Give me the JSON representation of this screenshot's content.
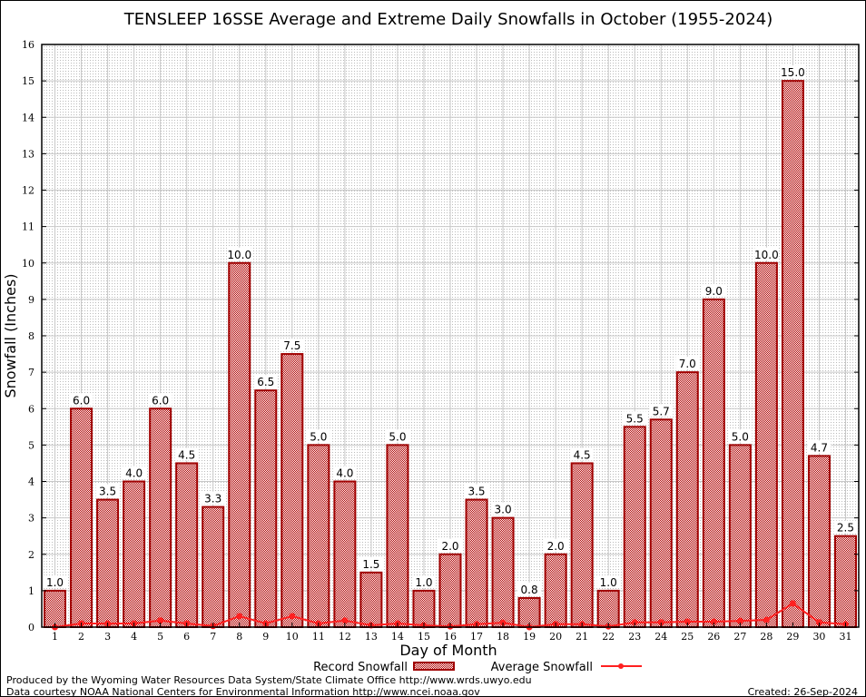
{
  "chart_data": {
    "type": "bar",
    "title": "TENSLEEP 16SSE Average and Extreme Daily Snowfalls in October (1955-2024)",
    "xlabel": "Day of Month",
    "ylabel": "Snowfall (Inches)",
    "ylim": [
      0,
      16
    ],
    "yticks": [
      0,
      1,
      2,
      3,
      4,
      5,
      6,
      7,
      8,
      9,
      10,
      11,
      12,
      13,
      14,
      15,
      16
    ],
    "categories": [
      1,
      2,
      3,
      4,
      5,
      6,
      7,
      8,
      9,
      10,
      11,
      12,
      13,
      14,
      15,
      16,
      17,
      18,
      19,
      20,
      21,
      22,
      23,
      24,
      25,
      26,
      27,
      28,
      29,
      30,
      31
    ],
    "grid": true,
    "legend": "bottom",
    "series": [
      {
        "name": "Record Snowfall",
        "kind": "bar",
        "color": "#a00000",
        "values": [
          1.0,
          6.0,
          3.5,
          4.0,
          6.0,
          4.5,
          3.3,
          10.0,
          6.5,
          7.5,
          5.0,
          4.0,
          1.5,
          5.0,
          1.0,
          2.0,
          3.5,
          3.0,
          0.8,
          2.0,
          4.5,
          1.0,
          5.5,
          5.7,
          7.0,
          9.0,
          5.0,
          10.0,
          15.0,
          4.7,
          2.5
        ],
        "labels": [
          "1.0",
          "6.0",
          "3.5",
          "4.0",
          "6.0",
          "4.5",
          "3.3",
          "10.0",
          "6.5",
          "7.5",
          "5.0",
          "4.0",
          "1.5",
          "5.0",
          "1.0",
          "2.0",
          "3.5",
          "3.0",
          "0.8",
          "2.0",
          "4.5",
          "1.0",
          "5.5",
          "5.7",
          "7.0",
          "9.0",
          "5.0",
          "10.0",
          "15.0",
          "4.7",
          "2.5"
        ]
      },
      {
        "name": "Average Snowfall",
        "kind": "line",
        "color": "#ff2020",
        "values": [
          0.0,
          0.1,
          0.1,
          0.1,
          0.18,
          0.1,
          0.03,
          0.3,
          0.1,
          0.3,
          0.1,
          0.18,
          0.05,
          0.1,
          0.05,
          0.02,
          0.08,
          0.12,
          0.0,
          0.08,
          0.08,
          0.02,
          0.13,
          0.13,
          0.15,
          0.15,
          0.17,
          0.2,
          0.65,
          0.13,
          0.08
        ]
      }
    ]
  },
  "footer": {
    "line1": "Produced by the Wyoming Water Resources Data System/State Climate Office http://www.wrds.uwyo.edu",
    "line2": "Data courtesy NOAA National Centers for Environmental Information http://www.ncei.noaa.gov",
    "created": "Created:  26-Sep-2024"
  }
}
